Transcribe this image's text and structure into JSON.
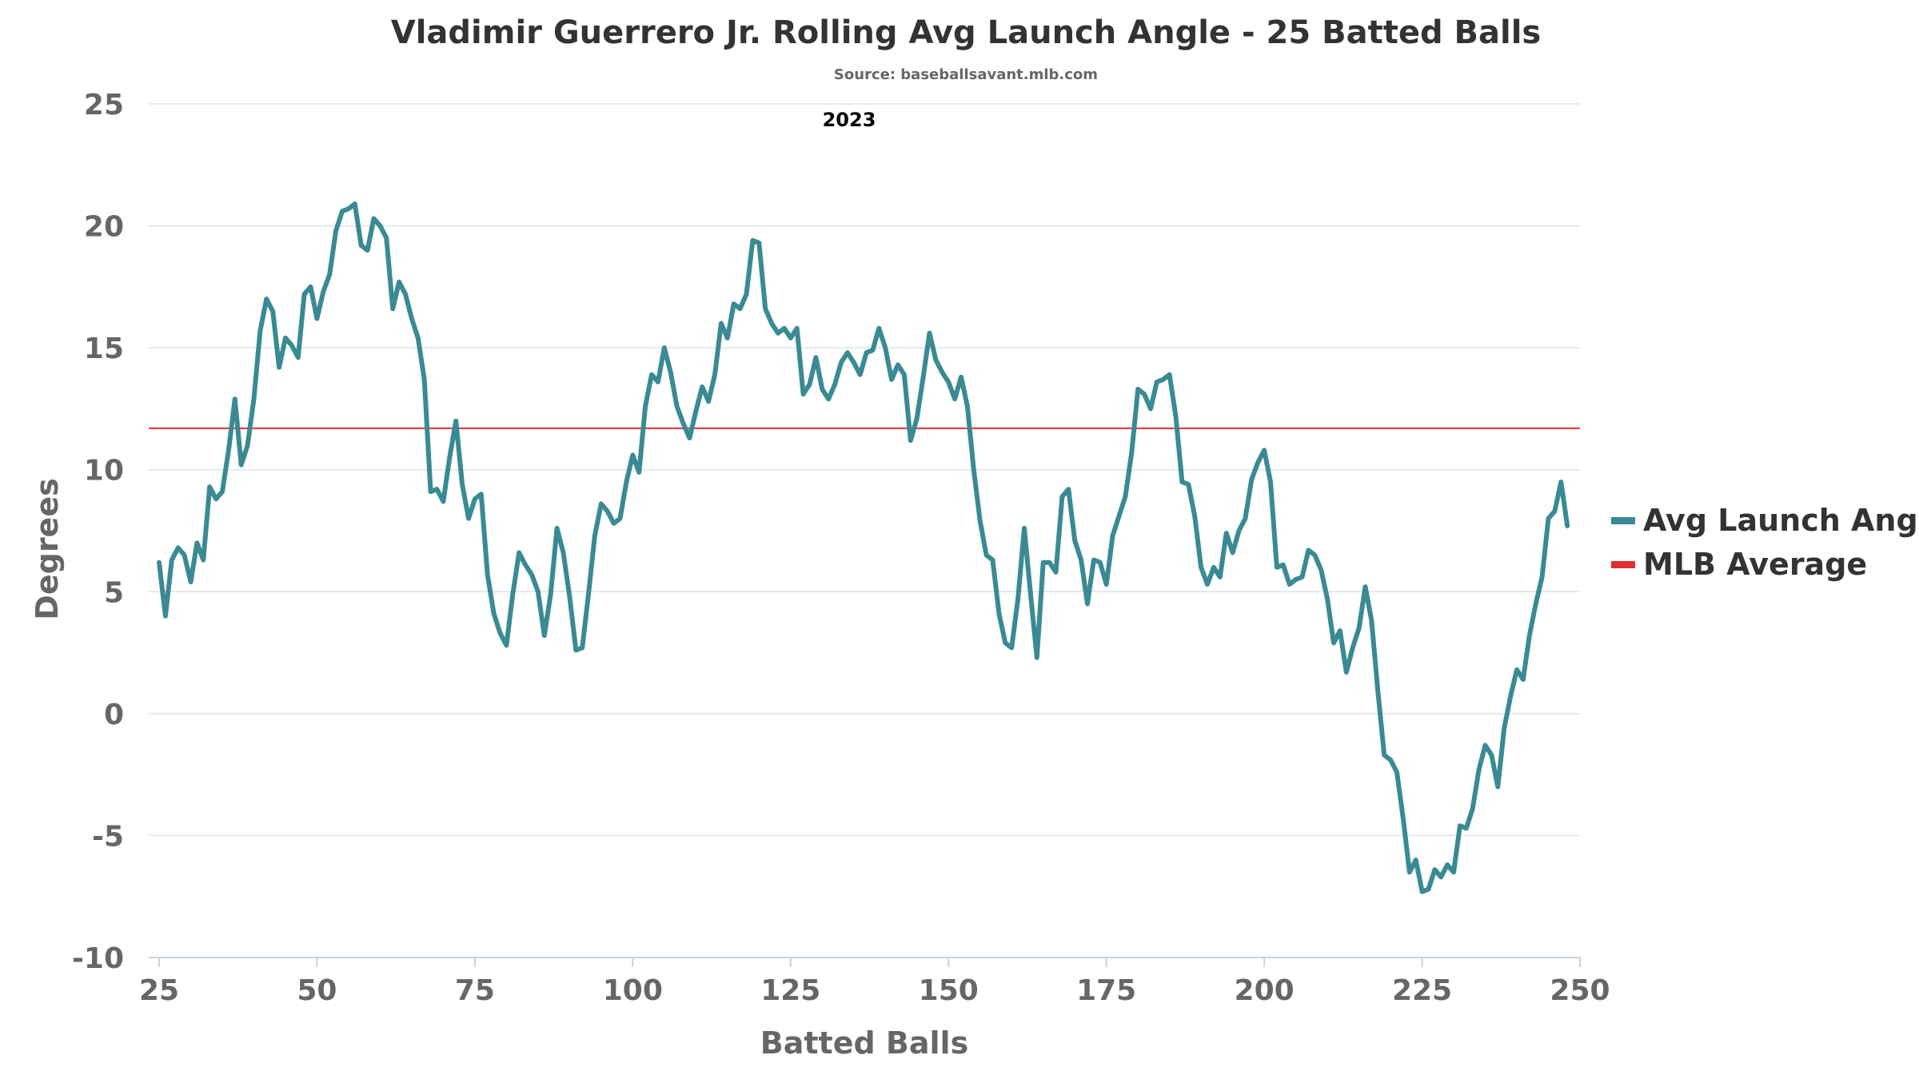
{
  "chart_data": {
    "type": "line",
    "title": "Vladimir Guerrero Jr. Rolling Avg Launch Angle - 25 Batted Balls",
    "subtitle": "Source: baseballsavant.mlb.com",
    "annotation": "2023",
    "xlabel": "Batted Balls",
    "ylabel": "Degrees",
    "xlim": [
      24,
      250
    ],
    "ylim": [
      -10,
      25
    ],
    "xticks": [
      25,
      50,
      75,
      100,
      125,
      150,
      175,
      200,
      225,
      250
    ],
    "yticks": [
      -10,
      -5,
      0,
      5,
      10,
      15,
      20,
      25
    ],
    "grid": true,
    "legend_position": "right",
    "colors": {
      "avg": "#3a8a93",
      "mlb": "#e03030"
    },
    "series": [
      {
        "name": "Avg Launch Angle",
        "x_start": 25,
        "values": [
          6.2,
          4.0,
          6.3,
          6.8,
          6.5,
          5.4,
          7.0,
          6.3,
          9.3,
          8.8,
          9.1,
          10.8,
          12.9,
          10.2,
          11.0,
          12.9,
          15.7,
          17.0,
          16.5,
          14.2,
          15.4,
          15.1,
          14.6,
          17.2,
          17.5,
          16.2,
          17.3,
          18.0,
          19.8,
          20.6,
          20.7,
          20.9,
          19.2,
          19.0,
          20.3,
          20.0,
          19.5,
          16.6,
          17.7,
          17.2,
          16.2,
          15.4,
          13.7,
          9.1,
          9.2,
          8.7,
          10.5,
          12.0,
          9.4,
          8.0,
          8.8,
          9.0,
          5.7,
          4.1,
          3.3,
          2.8,
          4.9,
          6.6,
          6.1,
          5.7,
          5.0,
          3.2,
          4.9,
          7.6,
          6.6,
          4.8,
          2.6,
          2.7,
          4.9,
          7.3,
          8.6,
          8.3,
          7.8,
          8.0,
          9.5,
          10.6,
          9.9,
          12.6,
          13.9,
          13.6,
          15.0,
          14.0,
          12.6,
          11.9,
          11.3,
          12.4,
          13.4,
          12.8,
          13.9,
          16.0,
          15.4,
          16.8,
          16.6,
          17.2,
          19.4,
          19.3,
          16.6,
          16.0,
          15.6,
          15.8,
          15.4,
          15.8,
          13.1,
          13.5,
          14.6,
          13.3,
          12.9,
          13.5,
          14.4,
          14.8,
          14.4,
          13.9,
          14.8,
          14.9,
          15.8,
          15.0,
          13.7,
          14.3,
          13.9,
          11.2,
          12.1,
          13.8,
          15.6,
          14.5,
          14.0,
          13.6,
          12.9,
          13.8,
          12.6,
          10.0,
          7.9,
          6.5,
          6.3,
          4.1,
          2.9,
          2.7,
          4.7,
          7.6,
          4.9,
          2.3,
          6.2,
          6.2,
          5.8,
          8.9,
          9.2,
          7.1,
          6.3,
          4.5,
          6.3,
          6.2,
          5.3,
          7.3,
          8.1,
          8.9,
          10.7,
          13.3,
          13.1,
          12.5,
          13.6,
          13.7,
          13.9,
          12.2,
          9.5,
          9.4,
          8.1,
          6.0,
          5.3,
          6.0,
          5.6,
          7.4,
          6.6,
          7.5,
          8.0,
          9.6,
          10.3,
          10.8,
          9.5,
          6.0,
          6.1,
          5.3,
          5.5,
          5.6,
          6.7,
          6.5,
          5.9,
          4.7,
          2.9,
          3.4,
          1.7,
          2.7,
          3.5,
          5.2,
          3.8,
          0.9,
          -1.7,
          -1.9,
          -2.4,
          -4.3,
          -6.5,
          -6.0,
          -7.3,
          -7.2,
          -6.4,
          -6.7,
          -6.2,
          -6.5,
          -4.6,
          -4.7,
          -3.9,
          -2.3,
          -1.3,
          -1.7,
          -3.0,
          -0.6,
          0.7,
          1.8,
          1.4,
          3.2,
          4.5,
          5.6,
          8.0,
          8.3,
          9.5,
          7.7
        ]
      },
      {
        "name": "MLB Average",
        "value": 11.7
      }
    ]
  }
}
